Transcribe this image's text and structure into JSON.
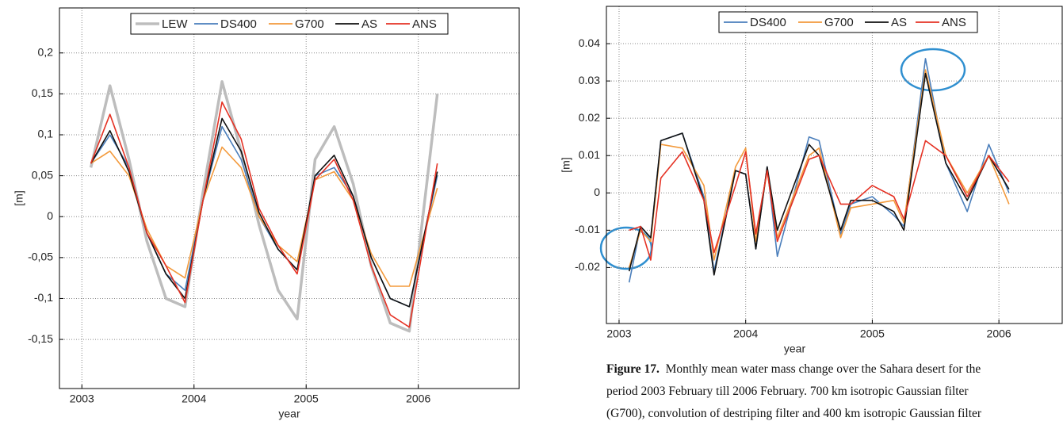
{
  "chart_data": [
    {
      "type": "line",
      "xlabel": "year",
      "ylabel": "[m]",
      "x": [
        2003.08,
        2003.25,
        2003.42,
        2003.58,
        2003.75,
        2003.92,
        2004.08,
        2004.25,
        2004.42,
        2004.58,
        2004.75,
        2004.92,
        2005.08,
        2005.25,
        2005.42,
        2005.58,
        2005.75,
        2005.92,
        2006.17
      ],
      "series": [
        {
          "name": "LEW",
          "color": "#bdbdbd",
          "values": [
            0.06,
            0.16,
            0.07,
            -0.03,
            -0.1,
            -0.11,
            0.03,
            0.165,
            0.08,
            -0.01,
            -0.09,
            -0.125,
            0.07,
            0.11,
            0.04,
            -0.06,
            -0.13,
            -0.14,
            0.15
          ]
        },
        {
          "name": "DS400",
          "color": "#4a7ebb",
          "values": [
            0.065,
            0.1,
            0.06,
            -0.02,
            -0.07,
            -0.09,
            0.02,
            0.11,
            0.07,
            0.0,
            -0.04,
            -0.065,
            0.05,
            0.06,
            0.025,
            -0.05,
            -0.1,
            -0.11,
            0.05
          ]
        },
        {
          "name": "G700",
          "color": "#f39a3c",
          "values": [
            0.065,
            0.08,
            0.05,
            -0.015,
            -0.06,
            -0.075,
            0.02,
            0.085,
            0.06,
            0.0,
            -0.035,
            -0.055,
            0.045,
            0.055,
            0.02,
            -0.045,
            -0.085,
            -0.085,
            0.035
          ]
        },
        {
          "name": "AS",
          "color": "#111111",
          "values": [
            0.065,
            0.105,
            0.055,
            -0.02,
            -0.07,
            -0.1,
            0.02,
            0.12,
            0.08,
            0.005,
            -0.04,
            -0.065,
            0.05,
            0.075,
            0.025,
            -0.05,
            -0.1,
            -0.11,
            0.055
          ]
        },
        {
          "name": "ANS",
          "color": "#e53224",
          "values": [
            0.065,
            0.125,
            0.06,
            -0.02,
            -0.06,
            -0.105,
            0.02,
            0.14,
            0.095,
            0.01,
            -0.035,
            -0.07,
            0.045,
            0.07,
            0.02,
            -0.06,
            -0.12,
            -0.135,
            0.065
          ]
        }
      ],
      "xlim": [
        2002.8,
        2006.9
      ],
      "xticks": [
        2003,
        2004,
        2005,
        2006
      ],
      "ylim": [
        -0.21,
        0.255
      ],
      "yticks": [
        {
          "value": -0.15,
          "label": "-0,15"
        },
        {
          "value": -0.1,
          "label": "-0,1"
        },
        {
          "value": -0.05,
          "label": "-0,05"
        },
        0,
        {
          "value": 0.05,
          "label": "0,05"
        },
        {
          "value": 0.1,
          "label": "0,1"
        },
        {
          "value": 0.15,
          "label": "0,15"
        },
        {
          "value": 0.2,
          "label": "0,2"
        }
      ],
      "grid": true,
      "legend": "upper center"
    },
    {
      "type": "line",
      "xlabel": "year",
      "ylabel": "[m]",
      "x": [
        2003.08,
        2003.17,
        2003.25,
        2003.33,
        2003.5,
        2003.67,
        2003.75,
        2003.92,
        2004.0,
        2004.08,
        2004.17,
        2004.25,
        2004.5,
        2004.58,
        2004.75,
        2004.83,
        2005.0,
        2005.17,
        2005.25,
        2005.42,
        2005.58,
        2005.75,
        2005.92,
        2006.08
      ],
      "series": [
        {
          "name": "DS400",
          "color": "#4a7ebb",
          "values": [
            -0.024,
            -0.009,
            -0.012,
            0.014,
            0.016,
            -0.001,
            -0.021,
            0.006,
            0.005,
            -0.015,
            0.007,
            -0.017,
            0.015,
            0.014,
            -0.011,
            -0.003,
            -0.001,
            -0.006,
            -0.009,
            0.036,
            0.008,
            -0.005,
            0.013,
            0.0
          ]
        },
        {
          "name": "G700",
          "color": "#f39a3c",
          "values": [
            -0.02,
            -0.01,
            -0.013,
            0.013,
            0.012,
            0.002,
            -0.018,
            0.007,
            0.012,
            -0.013,
            0.006,
            -0.012,
            0.01,
            0.012,
            -0.012,
            -0.004,
            -0.003,
            -0.002,
            -0.008,
            0.033,
            0.01,
            0.0,
            0.01,
            -0.003
          ]
        },
        {
          "name": "AS",
          "color": "#111111",
          "values": [
            -0.021,
            -0.009,
            -0.012,
            0.014,
            0.016,
            -0.002,
            -0.022,
            0.006,
            0.005,
            -0.015,
            0.007,
            -0.01,
            0.013,
            0.01,
            -0.01,
            -0.002,
            -0.002,
            -0.005,
            -0.01,
            0.032,
            0.008,
            -0.002,
            0.01,
            0.001
          ]
        },
        {
          "name": "ANS",
          "color": "#e53224",
          "values": [
            -0.01,
            -0.009,
            -0.018,
            0.004,
            0.011,
            -0.002,
            -0.016,
            0.002,
            0.011,
            -0.011,
            0.006,
            -0.013,
            0.009,
            0.01,
            -0.003,
            -0.003,
            0.002,
            -0.001,
            -0.007,
            0.014,
            0.01,
            -0.001,
            0.01,
            0.003
          ]
        }
      ],
      "xlim": [
        2002.9,
        2006.5
      ],
      "xticks": [
        2003,
        2004,
        2005,
        2006
      ],
      "ylim": [
        -0.035,
        0.05
      ],
      "yticks": [
        -0.02,
        -0.01,
        0,
        0.01,
        0.02,
        0.03,
        0.04
      ],
      "grid": true,
      "legend": "upper center"
    }
  ],
  "caption": {
    "label": "Figure 17.",
    "lines": [
      "Monthly mean water mass change over the Sahara desert for the",
      "period 2003 February till 2006 February. 700 km isotropic Gaussian filter",
      "(G700), convolution of destriping filter and 400 km isotropic Gaussian filter"
    ]
  }
}
